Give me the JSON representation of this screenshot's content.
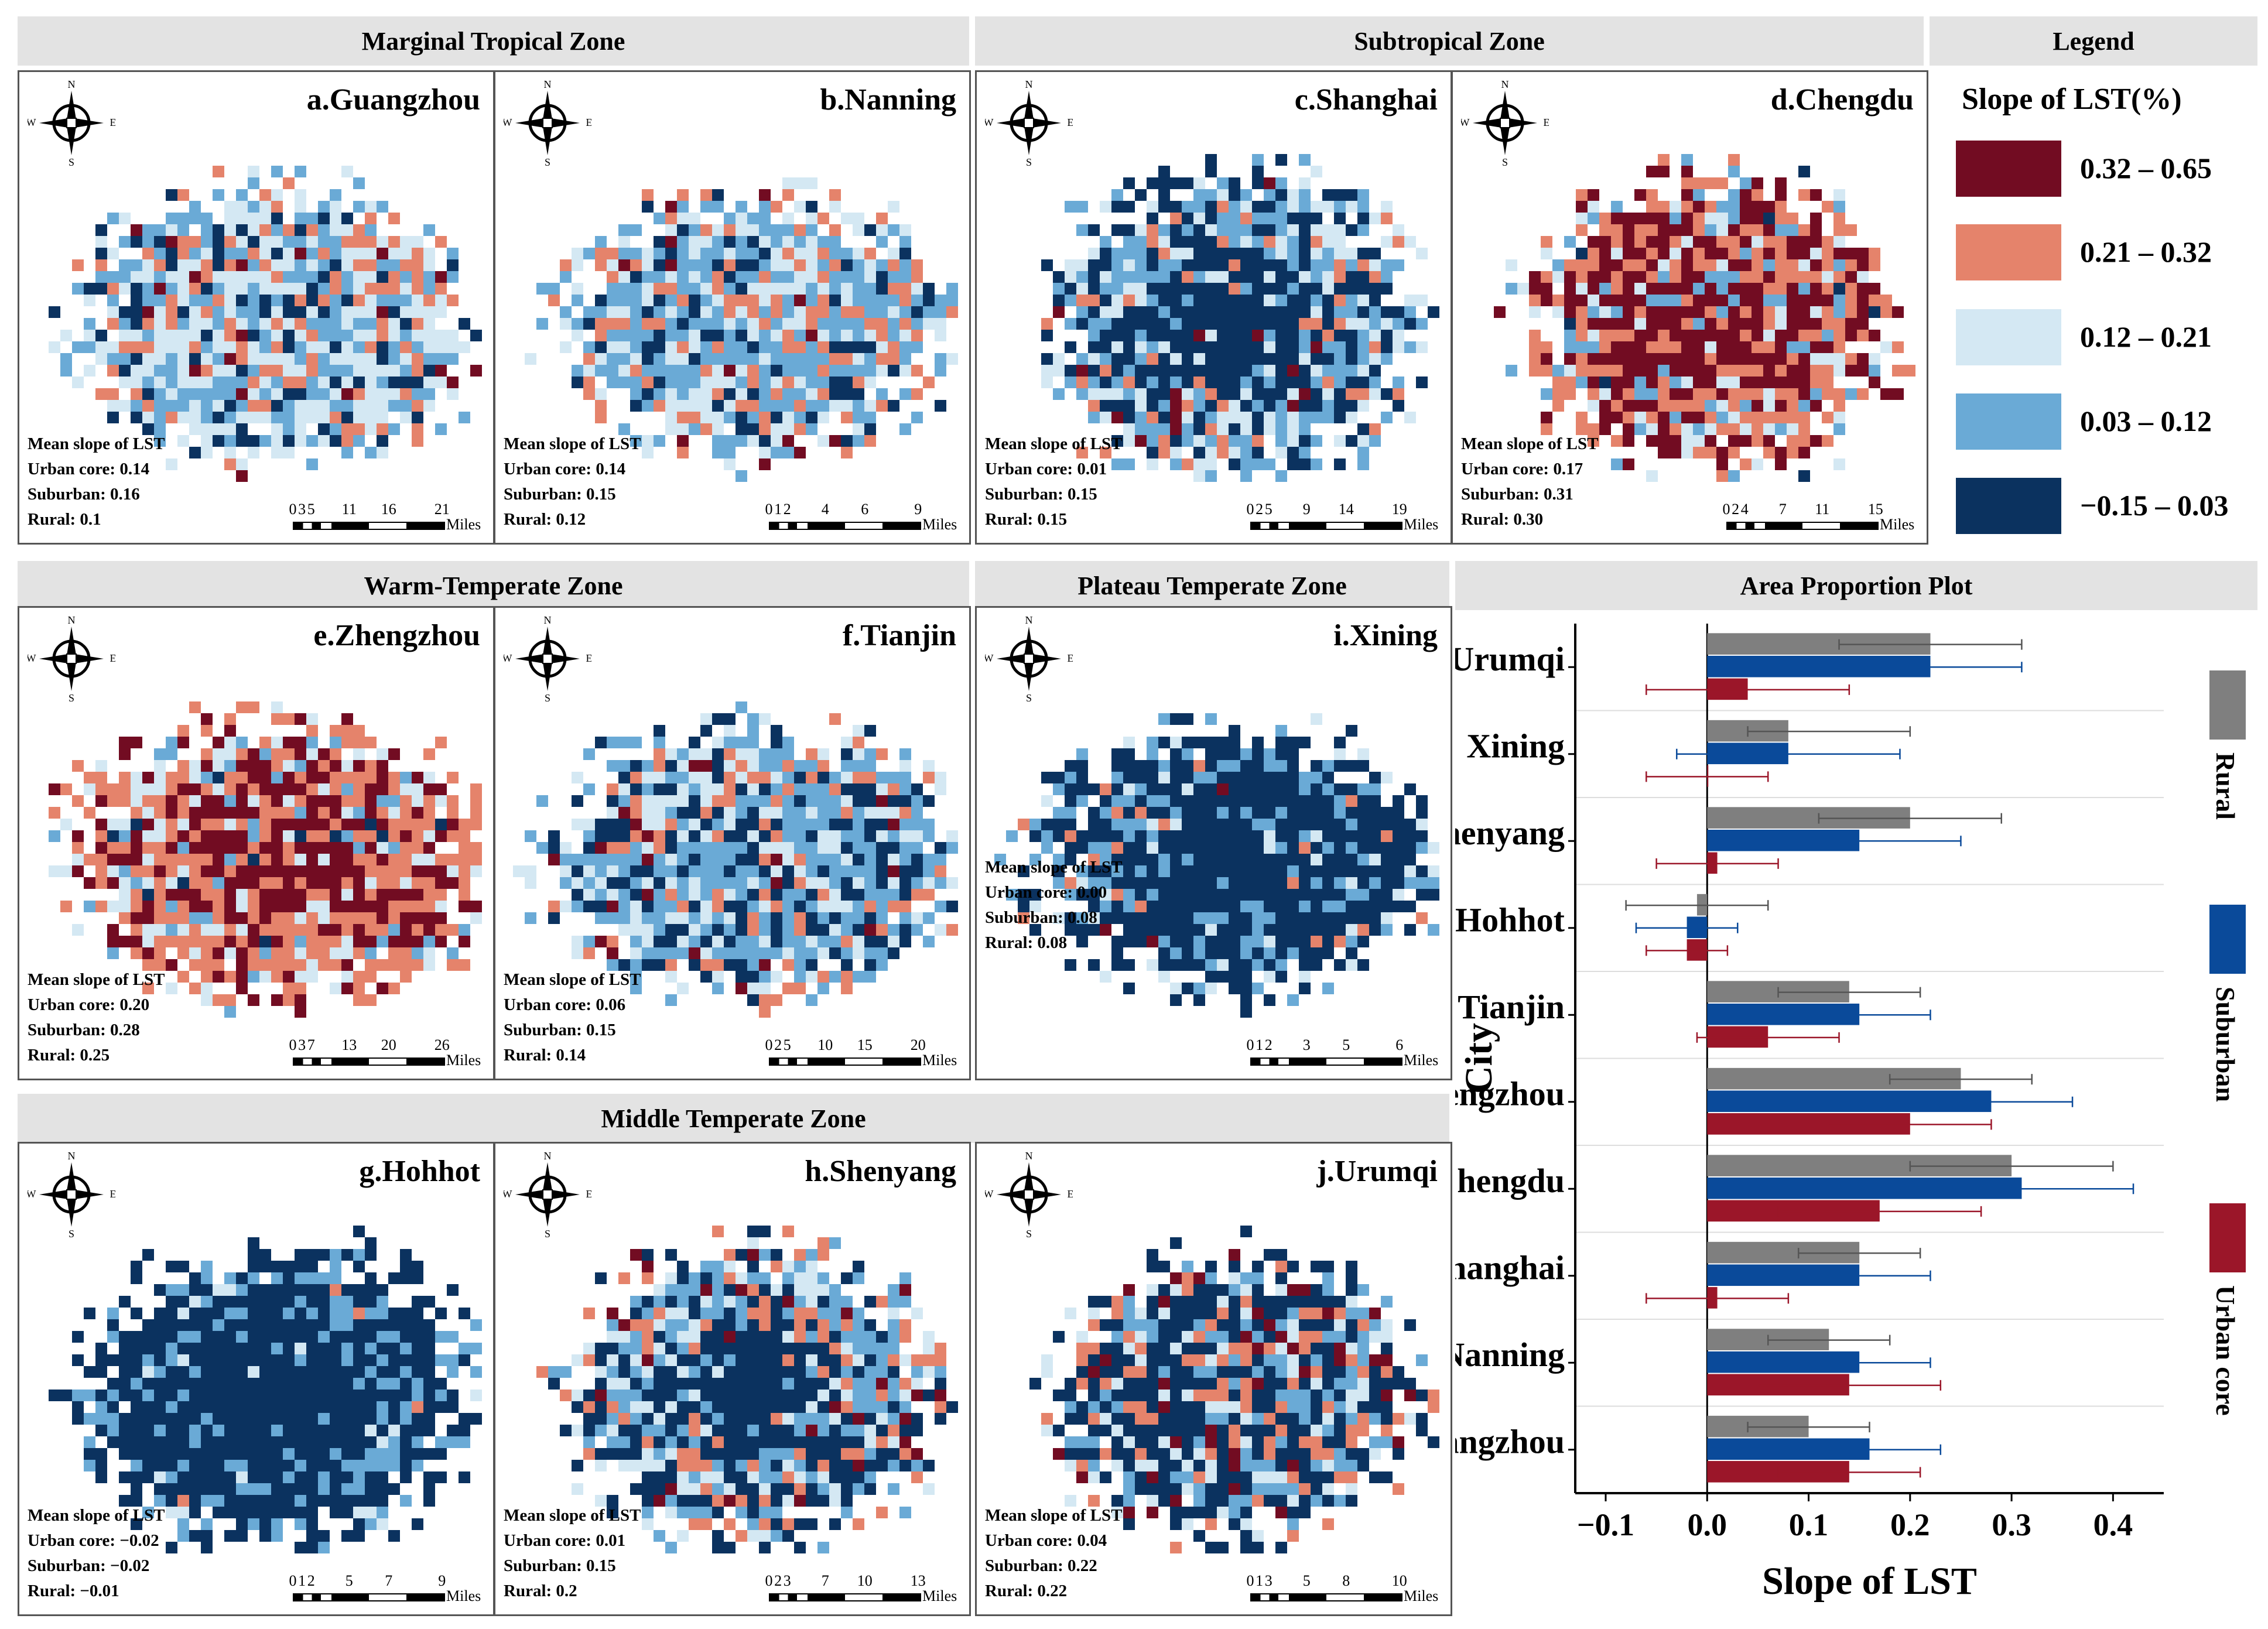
{
  "colors": {
    "c1": "#0b325f",
    "c2": "#6aaad6",
    "c3": "#d4e8f3",
    "c4": "#e5836b",
    "c5": "#720c22",
    "rural": "#7f7f7f",
    "suburban": "#0a4a9a",
    "urban_core": "#9b1629"
  },
  "zones": [
    {
      "title": "Marginal Tropical Zone"
    },
    {
      "title": "Subtropical Zone"
    },
    {
      "title": "Legend"
    },
    {
      "title": "Warm-Temperate Zone"
    },
    {
      "title": "Plateau Temperate Zone"
    },
    {
      "title": "Area Proportion  Plot"
    },
    {
      "title": "Middle Temperate Zone"
    }
  ],
  "compass": {
    "n": "N",
    "s": "S",
    "e": "E",
    "w": "W"
  },
  "panels": [
    {
      "title": "a.Guangzhou",
      "stats_title": "Mean slope of LST",
      "urban": "Urban core: 0.14",
      "suburban": "Suburban: 0.16",
      "rural": "Rural: 0.1",
      "scale_ticks": [
        "0",
        "3",
        "5",
        "11",
        "16",
        "21"
      ],
      "unit": "Miles"
    },
    {
      "title": "b.Nanning",
      "stats_title": "Mean slope of LST",
      "urban": "Urban core: 0.14",
      "suburban": "Suburban: 0.15",
      "rural": "Rural: 0.12",
      "scale_ticks": [
        "0",
        "1",
        "2",
        "4",
        "6",
        "9"
      ],
      "unit": "Miles"
    },
    {
      "title": "c.Shanghai",
      "stats_title": "Mean slope of LST",
      "urban": "Urban core: 0.01",
      "suburban": "Suburban: 0.15",
      "rural": "Rural: 0.15",
      "scale_ticks": [
        "0",
        "2",
        "5",
        "9",
        "14",
        "19"
      ],
      "unit": "Miles"
    },
    {
      "title": "d.Chengdu",
      "stats_title": "Mean slope of LST",
      "urban": "Urban core: 0.17",
      "suburban": "Suburban: 0.31",
      "rural": "Rural: 0.30",
      "scale_ticks": [
        "0",
        "2",
        "4",
        "7",
        "11",
        "15"
      ],
      "unit": "Miles"
    },
    {
      "title": "e.Zhengzhou",
      "stats_title": "Mean slope of LST",
      "urban": "Urban core: 0.20",
      "suburban": "Suburban: 0.28",
      "rural": "Rural: 0.25",
      "scale_ticks": [
        "0",
        "3",
        "7",
        "13",
        "20",
        "26"
      ],
      "unit": "Miles"
    },
    {
      "title": "f.Tianjin",
      "stats_title": "Mean slope of LST",
      "urban": "Urban core: 0.06",
      "suburban": "Suburban: 0.15",
      "rural": "Rural: 0.14",
      "scale_ticks": [
        "0",
        "2",
        "5",
        "10",
        "15",
        "20"
      ],
      "unit": "Miles"
    },
    {
      "title": "i.Xining",
      "stats_title": "Mean slope of LST",
      "urban": "Urban core: 0.00",
      "suburban": "Suburban: 0.08",
      "rural": "Rural: 0.08",
      "scale_ticks": [
        "0",
        "1",
        "2",
        "3",
        "5",
        "6"
      ],
      "unit": "Miles"
    },
    {
      "title": "g.Hohhot",
      "stats_title": "Mean slope of LST",
      "urban": "Urban core: −0.02",
      "suburban": "Suburban: −0.02",
      "rural": "Rural: −0.01",
      "scale_ticks": [
        "0",
        "1",
        "2",
        "5",
        "7",
        "9"
      ],
      "unit": "Miles"
    },
    {
      "title": "h.Shenyang",
      "stats_title": "Mean slope of LST",
      "urban": "Urban core: 0.01",
      "suburban": "Suburban: 0.15",
      "rural": "Rural: 0.2",
      "scale_ticks": [
        "0",
        "2",
        "3",
        "7",
        "10",
        "13"
      ],
      "unit": "Miles"
    },
    {
      "title": "j.Urumqi",
      "stats_title": "Mean slope of LST",
      "urban": "Urban core: 0.04",
      "suburban": "Suburban: 0.22",
      "rural": "Rural: 0.22",
      "scale_ticks": [
        "0",
        "1",
        "3",
        "5",
        "8",
        "10"
      ],
      "unit": "Miles"
    }
  ],
  "legend": {
    "title": "Slope of LST(%)",
    "items": [
      {
        "label": "0.32 – 0.65",
        "color": "#720c22"
      },
      {
        "label": "0.21 – 0.32",
        "color": "#e5836b"
      },
      {
        "label": "0.12 – 0.21",
        "color": "#d4e8f3"
      },
      {
        "label": "0.03 – 0.12",
        "color": "#6aaad6"
      },
      {
        "label": "−0.15 – 0.03",
        "color": "#0b325f"
      }
    ]
  },
  "chart_data": {
    "type": "bar",
    "orientation": "horizontal",
    "title": "Area Proportion  Plot",
    "xlabel": "Slope of LST",
    "ylabel": "City",
    "xlim": [
      -0.13,
      0.45
    ],
    "xticks": [
      -0.1,
      0.0,
      0.1,
      0.2,
      0.3,
      0.4
    ],
    "xtick_labels": [
      "−0.1",
      "0.0",
      "0.1",
      "0.2",
      "0.3",
      "0.4"
    ],
    "categories": [
      "Urumqi",
      "Xining",
      "Shenyang",
      "Hohhot",
      "Tianjin",
      "Zhengzhou",
      "Chengdu",
      "Shanghai",
      "Nanning",
      "Guangzhou"
    ],
    "series": [
      {
        "name": "Rural",
        "color": "#7f7f7f",
        "values": [
          0.22,
          0.08,
          0.2,
          -0.01,
          0.14,
          0.25,
          0.3,
          0.15,
          0.12,
          0.1
        ],
        "err_low": [
          0.13,
          0.04,
          0.11,
          -0.08,
          0.07,
          0.18,
          0.2,
          0.09,
          0.06,
          0.04
        ],
        "err_high": [
          0.31,
          0.2,
          0.29,
          0.06,
          0.21,
          0.32,
          0.4,
          0.21,
          0.18,
          0.16
        ]
      },
      {
        "name": "Suburban",
        "color": "#0a4a9a",
        "values": [
          0.22,
          0.08,
          0.15,
          -0.02,
          0.15,
          0.28,
          0.31,
          0.15,
          0.15,
          0.16
        ],
        "err_low": [
          0.13,
          -0.03,
          0.05,
          -0.07,
          0.08,
          0.2,
          0.2,
          0.08,
          0.08,
          0.09
        ],
        "err_high": [
          0.31,
          0.19,
          0.25,
          0.03,
          0.22,
          0.36,
          0.42,
          0.22,
          0.22,
          0.23
        ]
      },
      {
        "name": "Urban core",
        "color": "#9b1629",
        "values": [
          0.04,
          0.0,
          0.01,
          -0.02,
          0.06,
          0.2,
          0.17,
          0.01,
          0.14,
          0.14
        ],
        "err_low": [
          -0.06,
          -0.06,
          -0.05,
          -0.06,
          -0.01,
          0.12,
          0.07,
          -0.06,
          0.05,
          0.07
        ],
        "err_high": [
          0.14,
          0.06,
          0.07,
          0.02,
          0.13,
          0.28,
          0.27,
          0.08,
          0.23,
          0.21
        ]
      }
    ],
    "side_legend": [
      "Rural",
      "Suburban",
      "Urban core"
    ]
  }
}
